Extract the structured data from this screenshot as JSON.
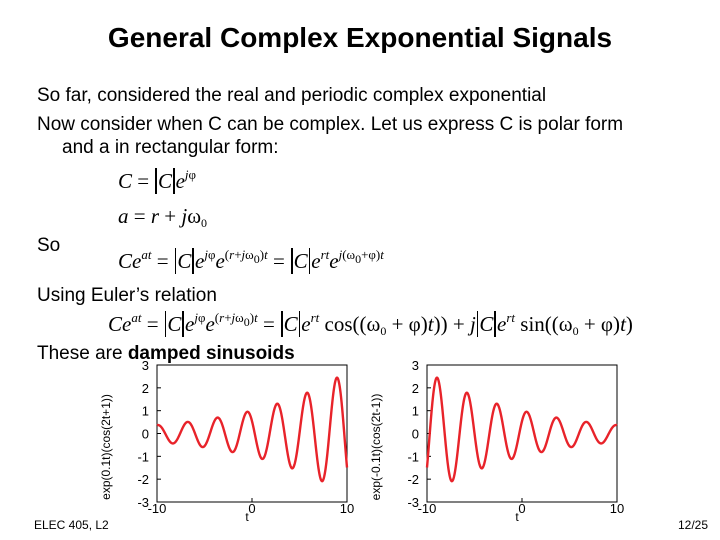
{
  "slide": {
    "title": "General Complex Exponential Signals",
    "line1": "So far, considered the real and periodic complex exponential",
    "line2": "Now consider when C can be complex.  Let us express C is polar form",
    "line3": "and a in rectangular form:",
    "so_label": "So",
    "euler_label": "Using Euler’s relation",
    "damped_prefix": "These are ",
    "damped_bold": "damped sinusoids",
    "footer_left": "ELEC 405, L2",
    "footer_right": "12/25"
  },
  "chart_data": [
    {
      "type": "line",
      "ylabel": "exp(0.1t)(cos(2t+1))",
      "xlabel": "t",
      "xlim": [
        -10,
        10
      ],
      "ylim": [
        -3,
        3
      ],
      "xticks": [
        "-10",
        "0",
        "10"
      ],
      "yticks": [
        "3",
        "2",
        "1",
        "0",
        "-1",
        "-2",
        "-3"
      ],
      "function": "exp(0.1t)cos(2t+1)",
      "r": 0.1,
      "omega0": 2,
      "phi": 1,
      "color": "#e8232a"
    },
    {
      "type": "line",
      "ylabel": "exp(-0.1t)(cos(2t-1))",
      "xlabel": "t",
      "xlim": [
        -10,
        10
      ],
      "ylim": [
        -3,
        3
      ],
      "xticks": [
        "-10",
        "0",
        "10"
      ],
      "yticks": [
        "3",
        "2",
        "1",
        "0",
        "-1",
        "-2",
        "-3"
      ],
      "function": "exp(-0.1t)cos(2t-1)",
      "r": -0.1,
      "omega0": 2,
      "phi": -1,
      "color": "#e8232a"
    }
  ]
}
